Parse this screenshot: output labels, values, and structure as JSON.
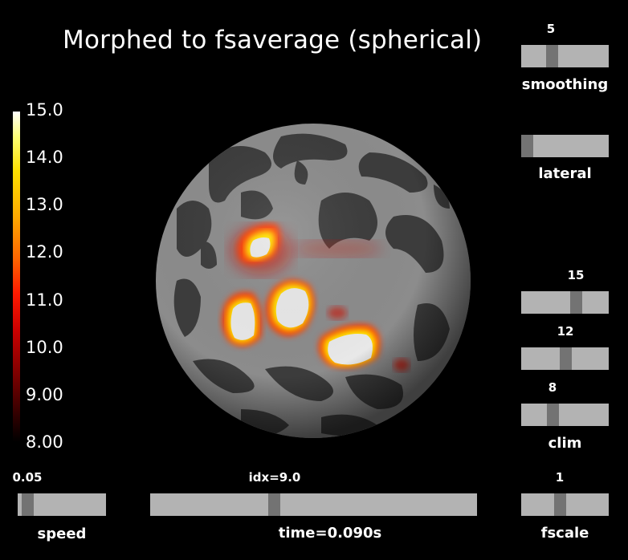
{
  "title": "Morphed to fsaverage (spherical)",
  "colorbar": {
    "labels": [
      "15.0",
      "14.0",
      "13.0",
      "12.0",
      "11.0",
      "10.0",
      "9.00",
      "8.00"
    ],
    "min": 8.0,
    "max": 15.0
  },
  "sliders": {
    "smoothing": {
      "value": "5",
      "label": "smoothing"
    },
    "lateral": {
      "value": "",
      "label": "lateral"
    },
    "clim_max": {
      "value": "15"
    },
    "clim_mid": {
      "value": "12"
    },
    "clim_min": {
      "value": "8",
      "label": "clim"
    },
    "speed": {
      "value": "0.05",
      "label": "speed"
    },
    "time": {
      "value": "idx=9.0",
      "label": "time=0.090s"
    },
    "fscale": {
      "value": "1",
      "label": "fscale"
    }
  },
  "colors": {
    "background": "#000000",
    "slider_track": "#b3b3b3",
    "slider_handle": "#737373",
    "sulcus": "#3c3c3c",
    "gyrus": "#8c8c8c"
  }
}
